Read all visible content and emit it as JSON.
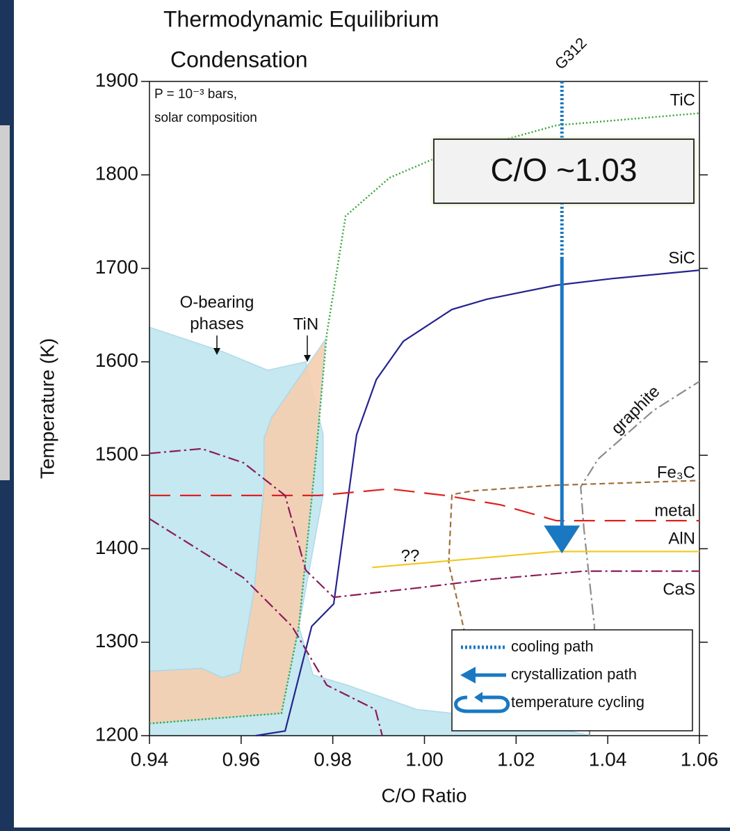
{
  "chart_data": {
    "type": "line",
    "title": [
      "Thermodynamic Equilibrium",
      "Condensation"
    ],
    "subtitle": [
      "P = 10⁻³ bars,",
      "solar composition"
    ],
    "x_label": "C/O Ratio",
    "y_label": "Temperature (K)",
    "xlim": [
      0.94,
      1.06
    ],
    "ylim": [
      1200,
      1900
    ],
    "xticks": [
      0.94,
      0.96,
      0.98,
      {
        "value": 1,
        "label": "1.00"
      },
      1.02,
      1.04,
      1.06
    ],
    "yticks": [
      1200,
      1300,
      1400,
      1500,
      1600,
      1700,
      1800,
      1900
    ],
    "regions": [
      {
        "name": "O-bearing phases",
        "color": "#bfe6f0",
        "x": [
          0.94,
          0.9559,
          0.9658,
          0.9741,
          0.9779,
          0.9779,
          0.9726,
          0.9757,
          0.9832,
          0.9984,
          1.0136,
          1.0273,
          1.0364,
          0.94
        ],
        "values": [
          1637,
          1611,
          1591,
          1600,
          1522,
          1458,
          1317,
          1265,
          1254,
          1228,
          1220,
          1209,
          1200,
          1200
        ]
      },
      {
        "name": "TiN",
        "color": "#f6cfb0",
        "x": [
          0.94,
          0.9514,
          0.9559,
          0.9597,
          0.9628,
          0.965,
          0.965,
          0.9666,
          0.9784,
          0.9764,
          0.9726,
          0.9688,
          0.94
        ],
        "values": [
          1269,
          1272,
          1262,
          1268,
          1354,
          1466,
          1518,
          1540,
          1624,
          1503,
          1317,
          1224,
          1213
        ]
      }
    ],
    "series": [
      {
        "name": "TiC",
        "color": "#3aa63a",
        "style": "dotted",
        "x": [
          0.94,
          0.9688,
          0.9726,
          0.9764,
          0.9787,
          0.9828,
          0.9924,
          1.0015,
          1.0288,
          1.06
        ],
        "values": [
          1213,
          1224,
          1317,
          1503,
          1630,
          1756,
          1797,
          1816,
          1853,
          1866
        ]
      },
      {
        "name": "SiC",
        "color": "#23238f",
        "style": "solid",
        "x": [
          0.9632,
          0.9696,
          0.9754,
          0.9802,
          0.9852,
          0.9895,
          0.9954,
          1.006,
          1.0136,
          1.0288,
          1.0409,
          1.06
        ],
        "values": [
          1200,
          1205,
          1317,
          1341,
          1522,
          1581,
          1622,
          1656,
          1667,
          1682,
          1689,
          1698
        ]
      },
      {
        "name": "graphite",
        "color": "#8c8c8c",
        "style": "dashdot",
        "x": [
          1.036,
          1.0371,
          1.0348,
          1.0341,
          1.0379,
          1.05,
          1.06
        ],
        "values": [
          1200,
          1317,
          1421,
          1466,
          1496,
          1548,
          1579
        ]
      },
      {
        "name": "Fe₃C",
        "color": "#a0703a",
        "style": "dashed",
        "x": [
          1.0136,
          1.0106,
          1.0053,
          1.006,
          1.0106,
          1.0288,
          1.06
        ],
        "values": [
          1205,
          1272,
          1384,
          1458,
          1462,
          1468,
          1473
        ]
      },
      {
        "name": "metal",
        "color": "#e02020",
        "style": "longdash",
        "x": [
          0.94,
          0.977,
          0.9924,
          1.0045,
          1.0166,
          1.0288,
          1.06
        ],
        "values": [
          1457,
          1457,
          1464,
          1457,
          1447,
          1430,
          1430
        ]
      },
      {
        "name": "AlN",
        "color": "#f2c81e",
        "style": "solid",
        "x": [
          0.9886,
          1.0288,
          1.06
        ],
        "values": [
          1380,
          1397,
          1397
        ]
      },
      {
        "name": "CaS",
        "color": "#8a1a5a",
        "style": "dashdot",
        "x": [
          0.94,
          0.9514,
          0.9605,
          0.9696,
          0.9741,
          0.9802,
          0.9984,
          1.0136,
          1.0348,
          1.06
        ],
        "values": [
          1502,
          1507,
          1492,
          1457,
          1377,
          1348,
          1358,
          1367,
          1376,
          1376
        ]
      },
      {
        "color": "#8a1a5a",
        "style": "dashdot",
        "x": [
          0.94,
          0.9605,
          0.9711,
          0.9787,
          0.9893,
          0.9908
        ],
        "values": [
          1432,
          1369,
          1317,
          1254,
          1228,
          1200
        ]
      }
    ],
    "path": {
      "label": "G312",
      "x": 1.03,
      "cooling": [
        1900,
        1712
      ],
      "crystallization": [
        1712,
        1395
      ],
      "color": "#1a78c2"
    },
    "annotations": [
      "C/O ~1.03",
      "??"
    ],
    "legend": [
      "cooling path",
      "crystallization path",
      "temperature cycling"
    ]
  }
}
